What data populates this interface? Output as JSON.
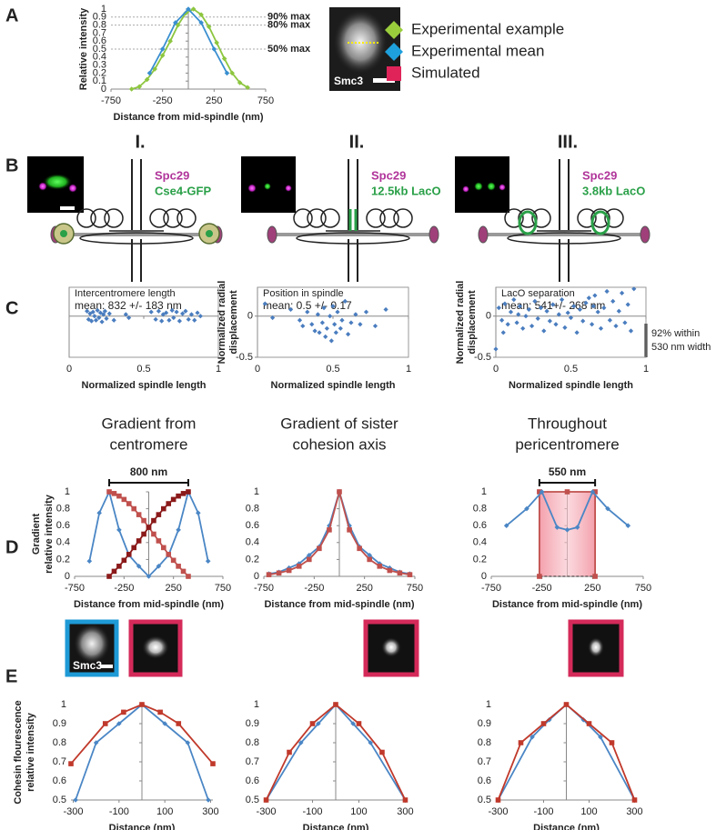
{
  "panel_labels": [
    "A",
    "B",
    "C",
    "D",
    "E"
  ],
  "legend": [
    {
      "name": "Experimental example",
      "color": "#9acd3c",
      "marker": "diamond"
    },
    {
      "name": "Experimental mean",
      "color": "#1ea0dc",
      "marker": "diamond"
    },
    {
      "name": "Simulated",
      "color": "#e0245a",
      "marker": "square"
    }
  ],
  "micrograph_labels": {
    "a": "Smc3",
    "e": "Smc3"
  },
  "diagrams": [
    {
      "numeral": "I.",
      "labels": [
        "Spc29",
        "Cse4-GFP"
      ]
    },
    {
      "numeral": "II.",
      "labels": [
        "Spc29",
        "12.5kb LacO"
      ]
    },
    {
      "numeral": "III.",
      "labels": [
        "Spc29",
        "3.8kb LacO"
      ]
    }
  ],
  "chart_data": [
    {
      "type": "line",
      "ylabel": [
        "Relative intensity"
      ],
      "xlabel": "Distance from mid-spindle (nm)",
      "xlim": [
        -750,
        750
      ],
      "ylim": [
        0,
        1
      ],
      "xticks": [
        -750,
        -250,
        250,
        750
      ],
      "yticks": [
        0,
        0.1,
        0.2,
        0.3,
        0.4,
        0.5,
        0.6,
        0.7,
        0.8,
        0.9,
        1
      ],
      "reference_lines": [
        {
          "value": 0.9,
          "label": "90% max"
        },
        {
          "value": 0.8,
          "label": "80% max"
        },
        {
          "value": 0.5,
          "label": "50% max"
        }
      ],
      "series": [
        {
          "color": "#8dc63f",
          "marker": "diamond",
          "x": [
            -550,
            -475,
            -400,
            -325,
            -250,
            -175,
            -100,
            -25,
            50,
            125,
            200,
            275,
            350,
            425,
            500,
            575
          ],
          "values": [
            0,
            0.03,
            0.12,
            0.25,
            0.42,
            0.6,
            0.8,
            0.95,
            1,
            0.93,
            0.78,
            0.58,
            0.38,
            0.2,
            0.08,
            0.02
          ]
        },
        {
          "color": "#3a8fd0",
          "marker": "diamond",
          "x": [
            -375,
            -250,
            -125,
            0,
            125,
            250,
            375
          ],
          "values": [
            0.2,
            0.5,
            0.83,
            1,
            0.83,
            0.5,
            0.2
          ]
        }
      ]
    },
    {
      "type": "scatter",
      "frame": true,
      "title": "Intercentromere length",
      "annotation": "mean: 832 +/- 183 nm",
      "xlabel": "Normalized spindle length",
      "xlim": [
        0,
        1
      ],
      "ylim": [
        -0.5,
        0.35
      ],
      "xticks": [
        0,
        0.5,
        1
      ],
      "yticks": [],
      "series": [
        {
          "color": "#4a7dbf",
          "marker": "diamond",
          "x": [
            0.12,
            0.13,
            0.14,
            0.15,
            0.16,
            0.17,
            0.18,
            0.19,
            0.2,
            0.21,
            0.22,
            0.23,
            0.24,
            0.25,
            0.27,
            0.3,
            0.38,
            0.4,
            0.55,
            0.58,
            0.6,
            0.62,
            0.63,
            0.65,
            0.67,
            0.69,
            0.7,
            0.72,
            0.74,
            0.76,
            0.78,
            0.8,
            0.82,
            0.84,
            0.86,
            0.88
          ],
          "values": [
            0.06,
            -0.04,
            0.03,
            -0.06,
            0.05,
            0,
            -0.05,
            0.07,
            -0.02,
            0.04,
            -0.07,
            0.02,
            0.06,
            -0.03,
            0.03,
            -0.05,
            0.02,
            -0.02,
            0.05,
            -0.04,
            0.06,
            -0.06,
            0.02,
            0.04,
            -0.05,
            0.07,
            -0.02,
            0.05,
            -0.06,
            0.03,
            0.06,
            -0.04,
            0.02,
            -0.05,
            0.04,
            0
          ]
        }
      ]
    },
    {
      "type": "scatter",
      "frame": true,
      "title": "Position in spindle",
      "annotation": "mean: 0.5 +/- 0.17",
      "xlabel": "Normalized spindle length",
      "ylabel": [
        "Normalized radial",
        "displacement"
      ],
      "xlim": [
        0,
        1
      ],
      "ylim": [
        -0.5,
        0.35
      ],
      "xticks": [
        0,
        0.5,
        1
      ],
      "yticks": [
        -0.5,
        0
      ],
      "series": [
        {
          "color": "#4a7dbf",
          "marker": "diamond",
          "x": [
            0.05,
            0.1,
            0.22,
            0.28,
            0.3,
            0.33,
            0.36,
            0.38,
            0.4,
            0.41,
            0.43,
            0.44,
            0.45,
            0.46,
            0.48,
            0.49,
            0.5,
            0.51,
            0.52,
            0.53,
            0.55,
            0.56,
            0.58,
            0.6,
            0.62,
            0.65,
            0.68,
            0.72,
            0.78,
            0.85
          ],
          "values": [
            0.15,
            -0.02,
            0.08,
            -0.05,
            -0.12,
            0.05,
            -0.1,
            -0.18,
            0.02,
            -0.2,
            -0.08,
            0.1,
            -0.25,
            -0.15,
            0,
            -0.3,
            0.12,
            -0.1,
            -0.2,
            0.05,
            -0.15,
            -0.05,
            0.18,
            -0.22,
            -0.08,
            0.02,
            -0.1,
            0.05,
            -0.12,
            0.08
          ]
        }
      ]
    },
    {
      "type": "scatter",
      "frame": true,
      "title": "LacO separation",
      "annotation": "mean: 541+/- 268 nm",
      "xlabel": "Normalized spindle length",
      "ylabel": [
        "Normalized radial",
        "displacement"
      ],
      "xlim": [
        0,
        1
      ],
      "ylim": [
        -0.5,
        0.35
      ],
      "xticks": [
        0,
        0.5,
        1
      ],
      "yticks": [
        -0.5,
        0
      ],
      "side_note": [
        "92% within",
        "530 nm width"
      ],
      "series": [
        {
          "color": "#4a7dbf",
          "marker": "diamond",
          "x": [
            0,
            0.02,
            0.04,
            0.06,
            0.08,
            0.1,
            0.12,
            0.14,
            0.16,
            0.18,
            0.2,
            0.22,
            0.24,
            0.26,
            0.28,
            0.3,
            0.32,
            0.34,
            0.36,
            0.38,
            0.4,
            0.42,
            0.44,
            0.46,
            0.48,
            0.5,
            0.52,
            0.54,
            0.56,
            0.58,
            0.6,
            0.62,
            0.64,
            0.66,
            0.68,
            0.7,
            0.72,
            0.74,
            0.76,
            0.78,
            0.8,
            0.82,
            0.84,
            0.86,
            0.88,
            0.9,
            0.92,
            0.05,
            0.15,
            0.65
          ],
          "values": [
            -0.4,
            0.1,
            -0.05,
            0.15,
            -0.1,
            0.05,
            0.2,
            -0.08,
            0.12,
            -0.15,
            0,
            0.08,
            -0.12,
            0.18,
            -0.03,
            0.1,
            -0.18,
            0.06,
            -0.06,
            0.14,
            -0.1,
            0.02,
            0.2,
            -0.14,
            0.04,
            -0.02,
            0.12,
            -0.2,
            0.08,
            -0.06,
            0.16,
            0.22,
            -0.1,
            0.25,
            0.05,
            -0.15,
            0.1,
            0.3,
            -0.05,
            0.18,
            -0.12,
            0.06,
            0.28,
            -0.08,
            0.14,
            -0.18,
            0.33,
            -0.2,
            0.02,
            0.12
          ]
        }
      ]
    },
    {
      "type": "line",
      "title": [
        "Gradient from",
        "centromere"
      ],
      "span": {
        "label": "800 nm",
        "from": -400,
        "to": 400
      },
      "ylabel": [
        "Gradient",
        "relative intensity"
      ],
      "xlabel": "Distance from mid-spindle (nm)",
      "xlim": [
        -750,
        750
      ],
      "ylim": [
        0,
        1
      ],
      "xticks": [
        -750,
        -250,
        250,
        750
      ],
      "yticks": [
        0,
        0.2,
        0.4,
        0.6,
        0.8,
        1
      ],
      "series": [
        {
          "color": "#4a86c5",
          "marker": "diamond",
          "x": [
            -600,
            -500,
            -400,
            -300,
            -200,
            -100,
            0,
            100,
            200,
            300,
            400,
            500,
            600
          ],
          "values": [
            0.18,
            0.75,
            1,
            0.55,
            0.25,
            0.12,
            0,
            0.12,
            0.25,
            0.55,
            1,
            0.75,
            0.18
          ]
        },
        {
          "color": "#c0504d",
          "marker": "square",
          "x": [
            -400,
            -350,
            -300,
            -250,
            -200,
            -150,
            -100,
            -50,
            0,
            50,
            100,
            150,
            200,
            250,
            300,
            350,
            400
          ],
          "values": [
            1,
            0.98,
            0.95,
            0.91,
            0.86,
            0.8,
            0.73,
            0.66,
            0.58,
            0.5,
            0.42,
            0.34,
            0.26,
            0.19,
            0.12,
            0.06,
            0
          ]
        },
        {
          "color": "#8b1a1a",
          "marker": "square",
          "x": [
            -400,
            -350,
            -300,
            -250,
            -200,
            -150,
            -100,
            -50,
            0,
            50,
            100,
            150,
            200,
            250,
            300,
            350,
            400
          ],
          "values": [
            0,
            0.06,
            0.12,
            0.19,
            0.26,
            0.34,
            0.42,
            0.5,
            0.58,
            0.66,
            0.73,
            0.8,
            0.86,
            0.91,
            0.95,
            0.98,
            1
          ]
        }
      ]
    },
    {
      "type": "line",
      "title": [
        "Gradient of sister",
        "cohesion axis"
      ],
      "xlabel": "Distance from mid-spindle (nm)",
      "xlim": [
        -750,
        750
      ],
      "ylim": [
        0,
        1
      ],
      "xticks": [
        -750,
        -250,
        250,
        750
      ],
      "yticks": [
        0,
        0.2,
        0.4,
        0.6,
        0.8,
        1
      ],
      "series": [
        {
          "color": "#4a86c5",
          "marker": "diamond",
          "x": [
            -700,
            -600,
            -500,
            -400,
            -300,
            -200,
            -100,
            0,
            100,
            200,
            300,
            400,
            500,
            600,
            700
          ],
          "values": [
            0.03,
            0.05,
            0.1,
            0.15,
            0.25,
            0.35,
            0.6,
            1,
            0.6,
            0.35,
            0.25,
            0.15,
            0.1,
            0.05,
            0.03
          ]
        },
        {
          "color": "#c0504d",
          "marker": "square",
          "x": [
            -700,
            -600,
            -500,
            -400,
            -300,
            -200,
            -100,
            0,
            100,
            200,
            300,
            400,
            500,
            600,
            700
          ],
          "values": [
            0.02,
            0.04,
            0.07,
            0.12,
            0.2,
            0.33,
            0.55,
            1,
            0.55,
            0.33,
            0.2,
            0.12,
            0.07,
            0.04,
            0.02
          ]
        }
      ]
    },
    {
      "type": "line",
      "title": [
        "Throughout",
        "pericentromere"
      ],
      "span": {
        "label": "550 nm",
        "from": -275,
        "to": 275
      },
      "xlabel": "Distance from mid-spindle (nm)",
      "xlim": [
        -750,
        750
      ],
      "ylim": [
        0,
        1
      ],
      "xticks": [
        -750,
        -250,
        250,
        750
      ],
      "yticks": [
        0,
        0.2,
        0.4,
        0.6,
        0.8,
        1
      ],
      "series": [
        {
          "color": "#c0504d",
          "marker": "square",
          "area": true,
          "x": [
            -275,
            -275,
            0,
            275,
            275
          ],
          "values": [
            0,
            1,
            1,
            1,
            0
          ]
        },
        {
          "color": "#4a86c5",
          "marker": "diamond",
          "x": [
            -600,
            -400,
            -250,
            -100,
            0,
            100,
            250,
            400,
            600
          ],
          "values": [
            0.6,
            0.8,
            1,
            0.58,
            0.55,
            0.58,
            1,
            0.8,
            0.6
          ]
        }
      ]
    },
    {
      "type": "line",
      "ylabel": [
        "Cohesin flourescence",
        "relative intensity"
      ],
      "xlabel": "Distance (nm)",
      "xlim": [
        -310,
        310
      ],
      "ylim": [
        0.5,
        1
      ],
      "xticks": [
        -300,
        -100,
        100,
        300
      ],
      "yticks": [
        0.5,
        0.6,
        0.7,
        0.8,
        0.9,
        1
      ],
      "series": [
        {
          "color": "#4a86c5",
          "marker": "diamond",
          "x": [
            -290,
            -200,
            -100,
            0,
            100,
            200,
            290
          ],
          "values": [
            0.5,
            0.8,
            0.9,
            1,
            0.9,
            0.8,
            0.5
          ]
        },
        {
          "color": "#c0392b",
          "marker": "square",
          "x": [
            -310,
            -160,
            -80,
            0,
            80,
            160,
            310
          ],
          "values": [
            0.69,
            0.9,
            0.96,
            1,
            0.96,
            0.9,
            0.69
          ]
        }
      ]
    },
    {
      "type": "line",
      "xlabel": "Distance (nm)",
      "xlim": [
        -310,
        310
      ],
      "ylim": [
        0.5,
        1
      ],
      "xticks": [
        -300,
        -100,
        100,
        300
      ],
      "yticks": [
        0.5,
        0.6,
        0.7,
        0.8,
        0.9,
        1
      ],
      "series": [
        {
          "color": "#4a86c5",
          "marker": "diamond",
          "x": [
            -300,
            -150,
            -75,
            0,
            75,
            150,
            300
          ],
          "values": [
            0.5,
            0.8,
            0.9,
            1,
            0.9,
            0.8,
            0.5
          ]
        },
        {
          "color": "#c0392b",
          "marker": "square",
          "x": [
            -300,
            -200,
            -100,
            0,
            100,
            200,
            300
          ],
          "values": [
            0.5,
            0.75,
            0.9,
            1,
            0.9,
            0.75,
            0.5
          ]
        }
      ]
    },
    {
      "type": "line",
      "xlabel": "Distance (nm)",
      "xlim": [
        -310,
        310
      ],
      "ylim": [
        0.5,
        1
      ],
      "xticks": [
        -300,
        -100,
        100,
        300
      ],
      "yticks": [
        0.5,
        0.6,
        0.7,
        0.8,
        0.9,
        1
      ],
      "series": [
        {
          "color": "#4a86c5",
          "marker": "diamond",
          "x": [
            -300,
            -150,
            -75,
            0,
            75,
            150,
            300
          ],
          "values": [
            0.5,
            0.83,
            0.92,
            1,
            0.92,
            0.83,
            0.5
          ]
        },
        {
          "color": "#c0392b",
          "marker": "square",
          "x": [
            -300,
            -200,
            -100,
            0,
            100,
            200,
            300
          ],
          "values": [
            0.5,
            0.8,
            0.9,
            1,
            0.9,
            0.8,
            0.5
          ]
        }
      ]
    }
  ]
}
